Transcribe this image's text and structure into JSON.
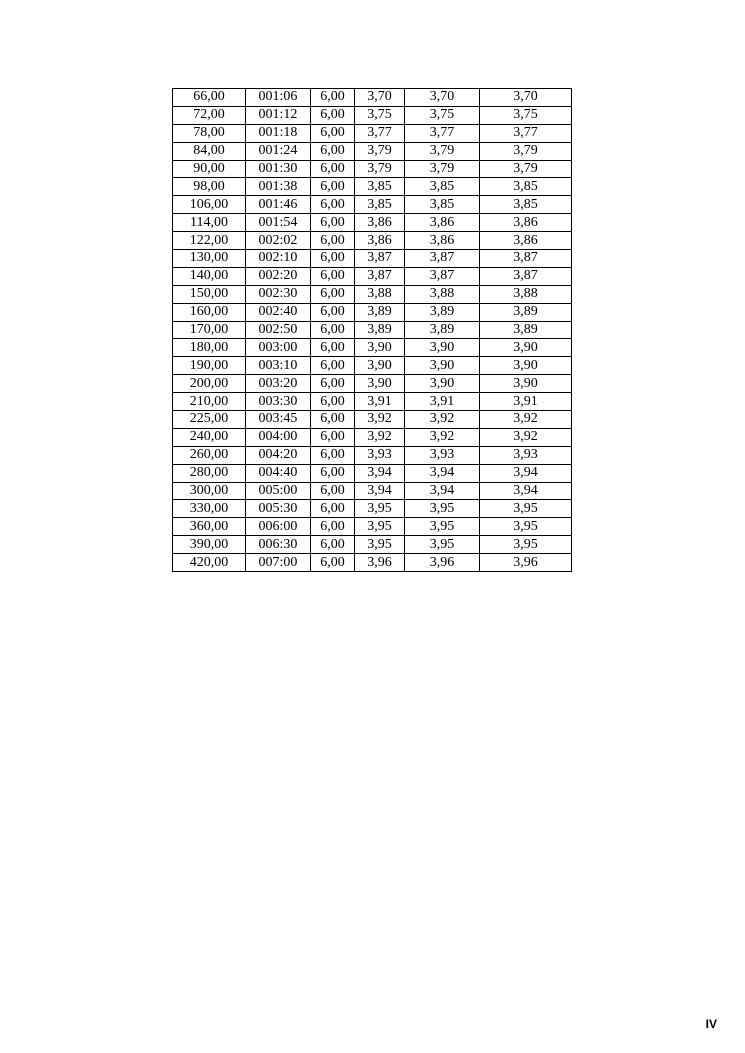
{
  "table": {
    "rows": [
      [
        "66,00",
        "001:06",
        "6,00",
        "3,70",
        "3,70",
        "3,70"
      ],
      [
        "72,00",
        "001:12",
        "6,00",
        "3,75",
        "3,75",
        "3,75"
      ],
      [
        "78,00",
        "001:18",
        "6,00",
        "3,77",
        "3,77",
        "3,77"
      ],
      [
        "84,00",
        "001:24",
        "6,00",
        "3,79",
        "3,79",
        "3,79"
      ],
      [
        "90,00",
        "001:30",
        "6,00",
        "3,79",
        "3,79",
        "3,79"
      ],
      [
        "98,00",
        "001:38",
        "6,00",
        "3,85",
        "3,85",
        "3,85"
      ],
      [
        "106,00",
        "001:46",
        "6,00",
        "3,85",
        "3,85",
        "3,85"
      ],
      [
        "114,00",
        "001:54",
        "6,00",
        "3,86",
        "3,86",
        "3,86"
      ],
      [
        "122,00",
        "002:02",
        "6,00",
        "3,86",
        "3,86",
        "3,86"
      ],
      [
        "130,00",
        "002:10",
        "6,00",
        "3,87",
        "3,87",
        "3,87"
      ],
      [
        "140,00",
        "002:20",
        "6,00",
        "3,87",
        "3,87",
        "3,87"
      ],
      [
        "150,00",
        "002:30",
        "6,00",
        "3,88",
        "3,88",
        "3,88"
      ],
      [
        "160,00",
        "002:40",
        "6,00",
        "3,89",
        "3,89",
        "3,89"
      ],
      [
        "170,00",
        "002:50",
        "6,00",
        "3,89",
        "3,89",
        "3,89"
      ],
      [
        "180,00",
        "003:00",
        "6,00",
        "3,90",
        "3,90",
        "3,90"
      ],
      [
        "190,00",
        "003:10",
        "6,00",
        "3,90",
        "3,90",
        "3,90"
      ],
      [
        "200,00",
        "003:20",
        "6,00",
        "3,90",
        "3,90",
        "3,90"
      ],
      [
        "210,00",
        "003:30",
        "6,00",
        "3,91",
        "3,91",
        "3,91"
      ],
      [
        "225,00",
        "003:45",
        "6,00",
        "3,92",
        "3,92",
        "3,92"
      ],
      [
        "240,00",
        "004:00",
        "6,00",
        "3,92",
        "3,92",
        "3,92"
      ],
      [
        "260,00",
        "004:20",
        "6,00",
        "3,93",
        "3,93",
        "3,93"
      ],
      [
        "280,00",
        "004:40",
        "6,00",
        "3,94",
        "3,94",
        "3,94"
      ],
      [
        "300,00",
        "005:00",
        "6,00",
        "3,94",
        "3,94",
        "3,94"
      ],
      [
        "330,00",
        "005:30",
        "6,00",
        "3,95",
        "3,95",
        "3,95"
      ],
      [
        "360,00",
        "006:00",
        "6,00",
        "3,95",
        "3,95",
        "3,95"
      ],
      [
        "390,00",
        "006:30",
        "6,00",
        "3,95",
        "3,95",
        "3,95"
      ],
      [
        "420,00",
        "007:00",
        "6,00",
        "3,96",
        "3,96",
        "3,96"
      ]
    ]
  },
  "page_number": "IV"
}
